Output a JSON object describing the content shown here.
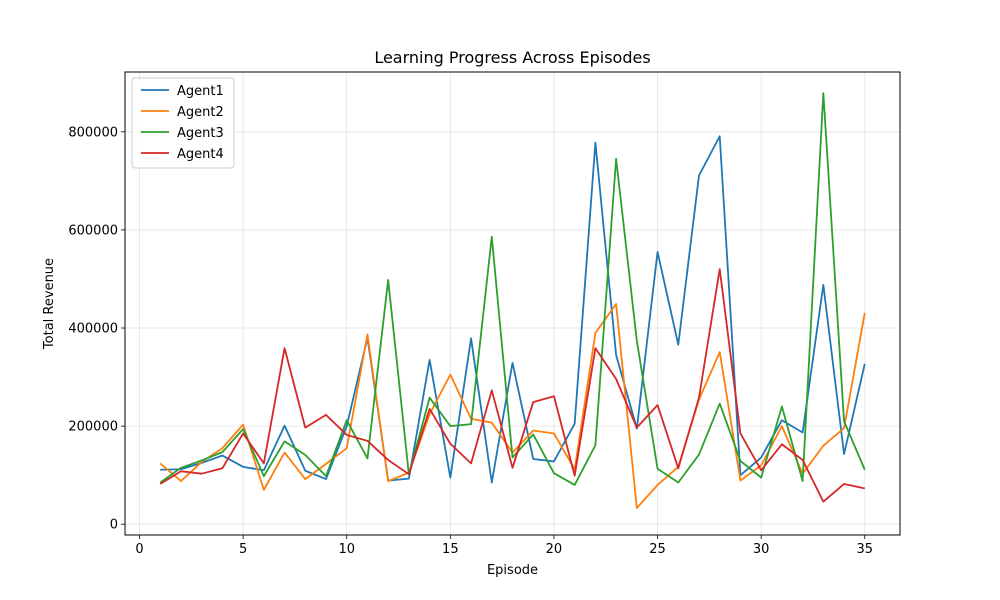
{
  "chart_data": {
    "type": "line",
    "title": "Learning Progress Across Episodes",
    "xlabel": "Episode",
    "ylabel": "Total Revenue",
    "xlim": [
      -0.7,
      36.7
    ],
    "ylim": [
      -22000,
      922000
    ],
    "xticks": [
      0,
      5,
      10,
      15,
      20,
      25,
      30,
      35
    ],
    "yticks": [
      0,
      200000,
      400000,
      600000,
      800000
    ],
    "grid": true,
    "legend_position": "top-left",
    "x": [
      1,
      2,
      3,
      4,
      5,
      6,
      7,
      8,
      9,
      10,
      11,
      12,
      13,
      14,
      15,
      16,
      17,
      18,
      19,
      20,
      21,
      22,
      23,
      24,
      25,
      26,
      27,
      28,
      29,
      30,
      31,
      32,
      33,
      34,
      35
    ],
    "series": [
      {
        "name": "Agent1",
        "color": "#1f77b4",
        "values": [
          111000,
          112000,
          125000,
          140000,
          117000,
          110000,
          201000,
          109000,
          92000,
          200000,
          380000,
          89000,
          93000,
          335000,
          95000,
          379000,
          85000,
          329000,
          133000,
          128000,
          205000,
          778000,
          345000,
          195000,
          555000,
          366000,
          711000,
          791000,
          100000,
          136000,
          212000,
          187000,
          488000,
          143000,
          327000
        ]
      },
      {
        "name": "Agent2",
        "color": "#ff7f0e",
        "values": [
          124000,
          88000,
          127000,
          155000,
          203000,
          70000,
          146000,
          92000,
          123000,
          155000,
          387000,
          88000,
          105000,
          224000,
          305000,
          215000,
          207000,
          146000,
          191000,
          185000,
          112000,
          390000,
          449000,
          33000,
          80000,
          117000,
          254000,
          351000,
          89000,
          120000,
          200000,
          103000,
          160000,
          196000,
          431000
        ]
      },
      {
        "name": "Agent3",
        "color": "#2ca02c",
        "values": [
          85000,
          115000,
          130000,
          147000,
          194000,
          98000,
          169000,
          141000,
          98000,
          212000,
          134000,
          498000,
          101000,
          258000,
          200000,
          204000,
          586000,
          136000,
          183000,
          104000,
          80000,
          161000,
          745000,
          374000,
          113000,
          85000,
          142000,
          246000,
          129000,
          95000,
          240000,
          88000,
          879000,
          210000,
          111000
        ]
      },
      {
        "name": "Agent4",
        "color": "#d62728",
        "values": [
          82000,
          108000,
          103000,
          114000,
          185000,
          124000,
          359000,
          197000,
          223000,
          182000,
          170000,
          131000,
          102000,
          235000,
          164000,
          124000,
          273000,
          115000,
          249000,
          261000,
          99000,
          359000,
          296000,
          197000,
          243000,
          114000,
          258000,
          520000,
          185000,
          110000,
          163000,
          131000,
          46000,
          82000,
          73000
        ]
      }
    ]
  }
}
